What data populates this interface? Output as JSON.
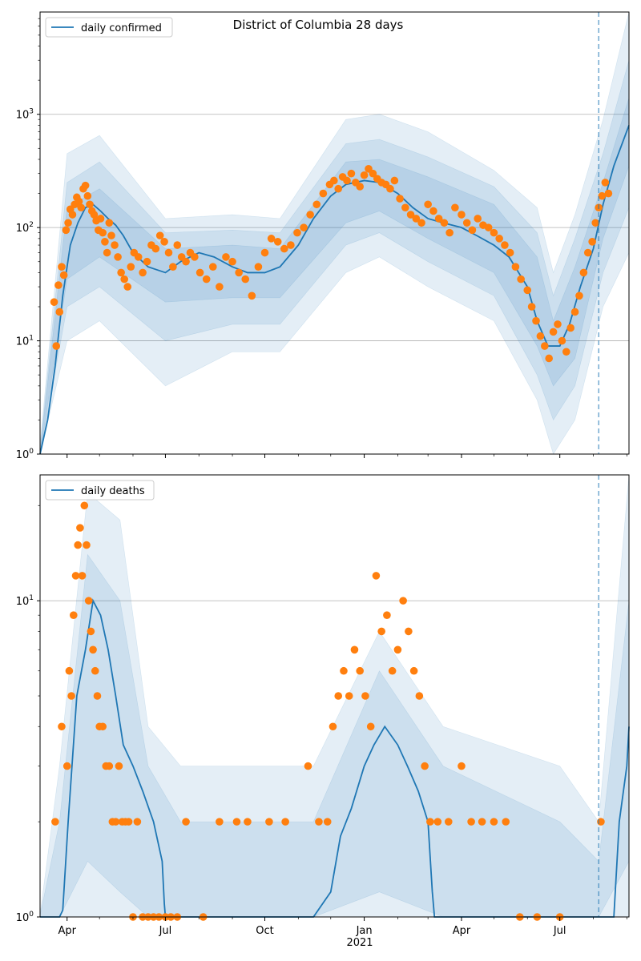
{
  "figure": {
    "title": "District of Columbia 28 days",
    "x_tick_labels": [
      "Apr",
      "Jul",
      "Oct",
      "Jan",
      "Apr",
      "Jul"
    ],
    "x_tick_sublabel": "2021"
  },
  "colors": {
    "line": "#1f77b4",
    "points": "#ff7f0e",
    "band": "#1f77b4",
    "grid": "#b0b0b0",
    "forecast_line": "#1f77b4"
  },
  "chart_data": [
    {
      "type": "line",
      "scale": "log",
      "title": "District of Columbia 28 days",
      "legend": "daily confirmed",
      "legend_position": "top-left",
      "x_range": [
        "2020-03-07",
        "2021-09-03"
      ],
      "ylim": [
        1,
        8000
      ],
      "y_tick_labels": [
        "10^0",
        "10^1",
        "10^2",
        "10^3"
      ],
      "grid": "y-major",
      "forecast_start": "2021-08-06",
      "series": [
        {
          "name": "daily confirmed",
          "kind": "line",
          "x": [
            "2020-03-07",
            "2020-03-14",
            "2020-03-21",
            "2020-03-28",
            "2020-04-04",
            "2020-04-11",
            "2020-04-18",
            "2020-04-25",
            "2020-05-02",
            "2020-05-09",
            "2020-05-16",
            "2020-05-23",
            "2020-06-01",
            "2020-06-15",
            "2020-07-01",
            "2020-07-15",
            "2020-08-01",
            "2020-08-15",
            "2020-09-01",
            "2020-09-15",
            "2020-10-01",
            "2020-10-15",
            "2020-11-01",
            "2020-11-15",
            "2020-12-01",
            "2020-12-15",
            "2021-01-01",
            "2021-01-15",
            "2021-02-01",
            "2021-02-15",
            "2021-03-01",
            "2021-03-15",
            "2021-04-01",
            "2021-04-15",
            "2021-05-01",
            "2021-05-15",
            "2021-06-01",
            "2021-06-10",
            "2021-06-20",
            "2021-07-01",
            "2021-07-10",
            "2021-07-20",
            "2021-08-01",
            "2021-08-10",
            "2021-08-20",
            "2021-09-03"
          ],
          "values": [
            1,
            2,
            6,
            25,
            70,
            110,
            150,
            160,
            140,
            120,
            105,
            85,
            60,
            45,
            40,
            50,
            60,
            55,
            45,
            40,
            40,
            45,
            70,
            120,
            190,
            240,
            260,
            250,
            200,
            150,
            120,
            110,
            100,
            85,
            70,
            55,
            30,
            15,
            9,
            9,
            14,
            30,
            65,
            160,
            350,
            800
          ]
        },
        {
          "name": "daily confirmed band 1",
          "kind": "band",
          "x": [
            "2020-03-07",
            "2020-04-01",
            "2020-05-01",
            "2020-07-01",
            "2020-09-01",
            "2020-10-15",
            "2020-12-15",
            "2021-01-15",
            "2021-03-01",
            "2021-05-01",
            "2021-06-10",
            "2021-06-25",
            "2021-07-15",
            "2021-08-10",
            "2021-09-03"
          ],
          "upper": [
            1.2,
            450,
            650,
            120,
            130,
            120,
            900,
            1000,
            700,
            320,
            150,
            40,
            130,
            900,
            8000
          ],
          "lower": [
            1,
            10,
            15,
            4,
            8,
            8,
            40,
            55,
            30,
            15,
            3,
            1,
            2,
            20,
            60
          ]
        },
        {
          "name": "daily confirmed band 2",
          "kind": "band",
          "x": [
            "2020-03-07",
            "2020-04-01",
            "2020-05-01",
            "2020-07-01",
            "2020-09-01",
            "2020-10-15",
            "2020-12-15",
            "2021-01-15",
            "2021-03-01",
            "2021-05-01",
            "2021-06-10",
            "2021-06-25",
            "2021-07-15",
            "2021-08-10",
            "2021-09-03"
          ],
          "upper": [
            1.1,
            250,
            380,
            90,
            95,
            90,
            550,
            600,
            420,
            230,
            90,
            25,
            80,
            450,
            3000
          ],
          "lower": [
            1,
            20,
            30,
            10,
            14,
            14,
            70,
            90,
            50,
            25,
            5,
            2,
            4,
            40,
            150
          ]
        },
        {
          "name": "daily confirmed band 3",
          "kind": "band",
          "x": [
            "2020-03-07",
            "2020-04-01",
            "2020-05-01",
            "2020-07-01",
            "2020-09-01",
            "2020-10-15",
            "2020-12-15",
            "2021-01-15",
            "2021-03-01",
            "2021-05-01",
            "2021-06-10",
            "2021-06-25",
            "2021-07-15",
            "2021-08-10",
            "2021-09-03"
          ],
          "upper": [
            1.05,
            150,
            220,
            65,
            70,
            65,
            380,
            400,
            280,
            160,
            55,
            15,
            45,
            250,
            1400
          ],
          "lower": [
            1,
            35,
            55,
            22,
            24,
            24,
            110,
            140,
            80,
            40,
            9,
            4,
            7,
            80,
            350
          ]
        },
        {
          "name": "daily confirmed observed",
          "kind": "scatter",
          "x": [
            "2020-03-20",
            "2020-03-22",
            "2020-03-24",
            "2020-03-25",
            "2020-03-27",
            "2020-03-29",
            "2020-03-31",
            "2020-04-02",
            "2020-04-04",
            "2020-04-06",
            "2020-04-08",
            "2020-04-10",
            "2020-04-12",
            "2020-04-14",
            "2020-04-16",
            "2020-04-18",
            "2020-04-20",
            "2020-04-22",
            "2020-04-24",
            "2020-04-26",
            "2020-04-28",
            "2020-04-30",
            "2020-05-02",
            "2020-05-04",
            "2020-05-06",
            "2020-05-08",
            "2020-05-10",
            "2020-05-12",
            "2020-05-15",
            "2020-05-18",
            "2020-05-21",
            "2020-05-24",
            "2020-05-27",
            "2020-05-30",
            "2020-06-02",
            "2020-06-06",
            "2020-06-10",
            "2020-06-14",
            "2020-06-18",
            "2020-06-22",
            "2020-06-26",
            "2020-06-30",
            "2020-07-04",
            "2020-07-08",
            "2020-07-12",
            "2020-07-16",
            "2020-07-20",
            "2020-07-24",
            "2020-07-28",
            "2020-08-02",
            "2020-08-08",
            "2020-08-14",
            "2020-08-20",
            "2020-08-26",
            "2020-09-01",
            "2020-09-07",
            "2020-09-13",
            "2020-09-19",
            "2020-09-25",
            "2020-10-01",
            "2020-10-07",
            "2020-10-13",
            "2020-10-19",
            "2020-10-25",
            "2020-10-31",
            "2020-11-06",
            "2020-11-12",
            "2020-11-18",
            "2020-11-24",
            "2020-11-30",
            "2020-12-04",
            "2020-12-08",
            "2020-12-12",
            "2020-12-16",
            "2020-12-20",
            "2020-12-24",
            "2020-12-28",
            "2021-01-01",
            "2021-01-05",
            "2021-01-09",
            "2021-01-13",
            "2021-01-17",
            "2021-01-21",
            "2021-01-25",
            "2021-01-29",
            "2021-02-03",
            "2021-02-08",
            "2021-02-13",
            "2021-02-18",
            "2021-02-23",
            "2021-03-01",
            "2021-03-06",
            "2021-03-11",
            "2021-03-16",
            "2021-03-21",
            "2021-03-26",
            "2021-04-01",
            "2021-04-06",
            "2021-04-11",
            "2021-04-16",
            "2021-04-21",
            "2021-04-26",
            "2021-05-01",
            "2021-05-06",
            "2021-05-11",
            "2021-05-16",
            "2021-05-21",
            "2021-05-26",
            "2021-06-01",
            "2021-06-05",
            "2021-06-09",
            "2021-06-13",
            "2021-06-17",
            "2021-06-21",
            "2021-06-25",
            "2021-06-29",
            "2021-07-03",
            "2021-07-07",
            "2021-07-11",
            "2021-07-15",
            "2021-07-19",
            "2021-07-23",
            "2021-07-27",
            "2021-07-31",
            "2021-08-03",
            "2021-08-06",
            "2021-08-09",
            "2021-08-12",
            "2021-08-15"
          ],
          "values": [
            22,
            9,
            31,
            18,
            45,
            38,
            95,
            110,
            145,
            130,
            160,
            185,
            170,
            150,
            220,
            235,
            190,
            160,
            140,
            130,
            115,
            95,
            120,
            90,
            75,
            60,
            110,
            85,
            70,
            55,
            40,
            35,
            30,
            45,
            60,
            55,
            40,
            50,
            70,
            65,
            85,
            75,
            60,
            45,
            70,
            55,
            50,
            60,
            55,
            40,
            35,
            45,
            30,
            55,
            50,
            40,
            35,
            25,
            45,
            60,
            80,
            75,
            65,
            70,
            90,
            100,
            130,
            160,
            200,
            240,
            260,
            220,
            280,
            260,
            300,
            250,
            230,
            290,
            330,
            300,
            270,
            250,
            240,
            220,
            260,
            180,
            150,
            130,
            120,
            110,
            160,
            140,
            120,
            110,
            90,
            150,
            130,
            110,
            95,
            120,
            105,
            100,
            90,
            80,
            70,
            60,
            45,
            35,
            28,
            20,
            15,
            11,
            9,
            7,
            12,
            14,
            10,
            8,
            13,
            18,
            25,
            40,
            60,
            75,
            110,
            150,
            190,
            250,
            200
          ]
        }
      ]
    },
    {
      "type": "line",
      "scale": "log",
      "title": "",
      "legend": "daily deaths",
      "legend_position": "top-left",
      "x_range": [
        "2020-03-07",
        "2021-09-03"
      ],
      "ylim": [
        1,
        25
      ],
      "y_tick_labels": [
        "10^0",
        "10^1"
      ],
      "grid": "y-major",
      "forecast_start": "2021-08-06",
      "series": [
        {
          "name": "daily deaths",
          "kind": "line",
          "x": [
            "2020-03-07",
            "2020-03-25",
            "2020-03-28",
            "2020-04-02",
            "2020-04-10",
            "2020-04-18",
            "2020-04-25",
            "2020-05-02",
            "2020-05-09",
            "2020-05-16",
            "2020-05-23",
            "2020-06-01",
            "2020-06-10",
            "2020-06-20",
            "2020-06-28",
            "2020-06-30",
            "2020-07-01",
            "2020-11-15",
            "2020-12-01",
            "2020-12-10",
            "2020-12-20",
            "2021-01-01",
            "2021-01-10",
            "2021-01-20",
            "2021-02-01",
            "2021-02-10",
            "2021-02-20",
            "2021-03-01",
            "2021-03-05",
            "2021-03-07",
            "2021-08-20",
            "2021-08-25",
            "2021-09-01",
            "2021-09-03"
          ],
          "values": [
            1,
            1,
            1.05,
            2,
            5,
            7,
            10,
            9,
            7,
            5,
            3.5,
            3,
            2.5,
            2,
            1.5,
            1.1,
            1,
            1,
            1.2,
            1.8,
            2.2,
            3,
            3.5,
            4,
            3.5,
            3,
            2.5,
            2,
            1.2,
            1,
            1,
            2,
            3,
            4
          ]
        },
        {
          "name": "daily deaths band 1",
          "kind": "band",
          "x": [
            "2020-03-07",
            "2020-03-25",
            "2020-04-20",
            "2020-05-20",
            "2020-06-15",
            "2020-07-15",
            "2020-11-15",
            "2021-01-15",
            "2021-03-15",
            "2021-07-01",
            "2021-08-06",
            "2021-09-03"
          ],
          "upper": [
            1.02,
            3,
            22,
            18,
            4,
            3,
            3,
            8,
            4,
            3,
            2,
            25
          ],
          "lower": [
            1,
            1,
            1,
            1,
            1,
            1,
            1,
            1,
            1,
            1,
            1,
            1
          ]
        },
        {
          "name": "daily deaths band 2",
          "kind": "band",
          "x": [
            "2020-03-07",
            "2020-03-25",
            "2020-04-20",
            "2020-05-20",
            "2020-06-15",
            "2020-07-15",
            "2020-11-15",
            "2021-01-15",
            "2021-03-15",
            "2021-07-01",
            "2021-08-06",
            "2021-09-03"
          ],
          "upper": [
            1.01,
            2,
            14,
            10,
            3,
            2,
            2,
            6,
            3,
            2,
            1.5,
            10
          ],
          "lower": [
            1,
            1,
            1.5,
            1.2,
            1,
            1,
            1,
            1.2,
            1,
            1,
            1,
            1.5
          ]
        },
        {
          "name": "daily deaths observed",
          "kind": "scatter",
          "x": [
            "2020-03-21",
            "2020-03-27",
            "2020-04-01",
            "2020-04-03",
            "2020-04-05",
            "2020-04-07",
            "2020-04-09",
            "2020-04-11",
            "2020-04-13",
            "2020-04-15",
            "2020-04-17",
            "2020-04-19",
            "2020-04-21",
            "2020-04-23",
            "2020-04-25",
            "2020-04-27",
            "2020-04-29",
            "2020-05-01",
            "2020-05-04",
            "2020-05-07",
            "2020-05-10",
            "2020-05-13",
            "2020-05-16",
            "2020-05-19",
            "2020-05-22",
            "2020-05-25",
            "2020-05-28",
            "2020-06-01",
            "2020-06-05",
            "2020-06-10",
            "2020-06-15",
            "2020-06-20",
            "2020-06-25",
            "2020-07-01",
            "2020-07-06",
            "2020-07-12",
            "2020-07-20",
            "2020-08-05",
            "2020-08-20",
            "2020-09-05",
            "2020-09-15",
            "2020-10-05",
            "2020-10-20",
            "2020-11-10",
            "2020-11-20",
            "2020-11-28",
            "2020-12-03",
            "2020-12-08",
            "2020-12-13",
            "2020-12-18",
            "2020-12-23",
            "2020-12-28",
            "2021-01-02",
            "2021-01-07",
            "2021-01-12",
            "2021-01-17",
            "2021-01-22",
            "2021-01-27",
            "2021-02-01",
            "2021-02-06",
            "2021-02-11",
            "2021-02-16",
            "2021-02-21",
            "2021-02-26",
            "2021-03-03",
            "2021-03-10",
            "2021-03-20",
            "2021-04-01",
            "2021-04-10",
            "2021-04-20",
            "2021-05-01",
            "2021-05-12",
            "2021-05-25",
            "2021-06-10",
            "2021-07-01",
            "2021-08-08"
          ],
          "values": [
            2,
            4,
            3,
            6,
            5,
            9,
            12,
            15,
            17,
            12,
            20,
            15,
            10,
            8,
            7,
            6,
            5,
            4,
            4,
            3,
            3,
            2,
            2,
            3,
            2,
            2,
            2,
            1,
            2,
            1,
            1,
            1,
            1,
            1,
            1,
            1,
            2,
            1,
            2,
            2,
            2,
            2,
            2,
            3,
            2,
            2,
            4,
            5,
            6,
            5,
            7,
            6,
            5,
            4,
            12,
            8,
            9,
            6,
            7,
            10,
            8,
            6,
            5,
            3,
            2,
            2,
            2,
            3,
            2,
            2,
            2,
            2,
            1,
            1,
            1,
            2
          ]
        }
      ]
    }
  ]
}
